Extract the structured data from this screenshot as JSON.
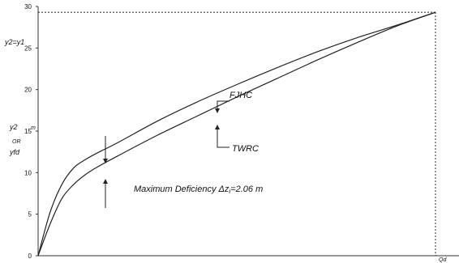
{
  "chart_data": {
    "type": "line",
    "title": "",
    "xlabel": "",
    "ylabel": "",
    "ylabel_lines": [
      "y2",
      "m",
      "OR",
      "yfd"
    ],
    "ylim": [
      0,
      30
    ],
    "yticks": [
      0,
      5,
      10,
      15,
      20,
      25,
      30
    ],
    "xlim": [
      0,
      1
    ],
    "grid": false,
    "series": [
      {
        "name": "FJHC",
        "x": [
          0,
          0.03,
          0.06,
          0.09,
          0.12,
          0.15,
          0.2,
          0.3,
          0.4,
          0.5,
          0.6,
          0.7,
          0.8,
          0.9,
          1.0
        ],
        "y": [
          0,
          5.2,
          8.6,
          10.6,
          11.6,
          12.4,
          13.6,
          16.2,
          18.5,
          20.6,
          22.6,
          24.5,
          26.2,
          27.7,
          29.3
        ]
      },
      {
        "name": "TWRC",
        "x": [
          0,
          0.03,
          0.06,
          0.09,
          0.12,
          0.15,
          0.2,
          0.3,
          0.4,
          0.5,
          0.6,
          0.7,
          0.8,
          0.9,
          1.0
        ],
        "y": [
          0,
          3.8,
          6.9,
          8.6,
          9.8,
          10.7,
          12.0,
          14.5,
          16.8,
          19.1,
          21.3,
          23.5,
          25.6,
          27.6,
          29.3
        ]
      }
    ],
    "annotations": {
      "top_left_label": "y2=y1",
      "x_end_label": "Qd",
      "fjhc_label": "FJHC",
      "twrc_label": "TWRC",
      "deficiency_text": "Maximum Deficiency  Δz",
      "deficiency_sub": "i",
      "deficiency_value": "=2.06 m"
    },
    "end_point": {
      "x": 1.0,
      "y": 29.3
    },
    "max_deficiency_at_x": 0.12,
    "line_color": "#222222"
  }
}
